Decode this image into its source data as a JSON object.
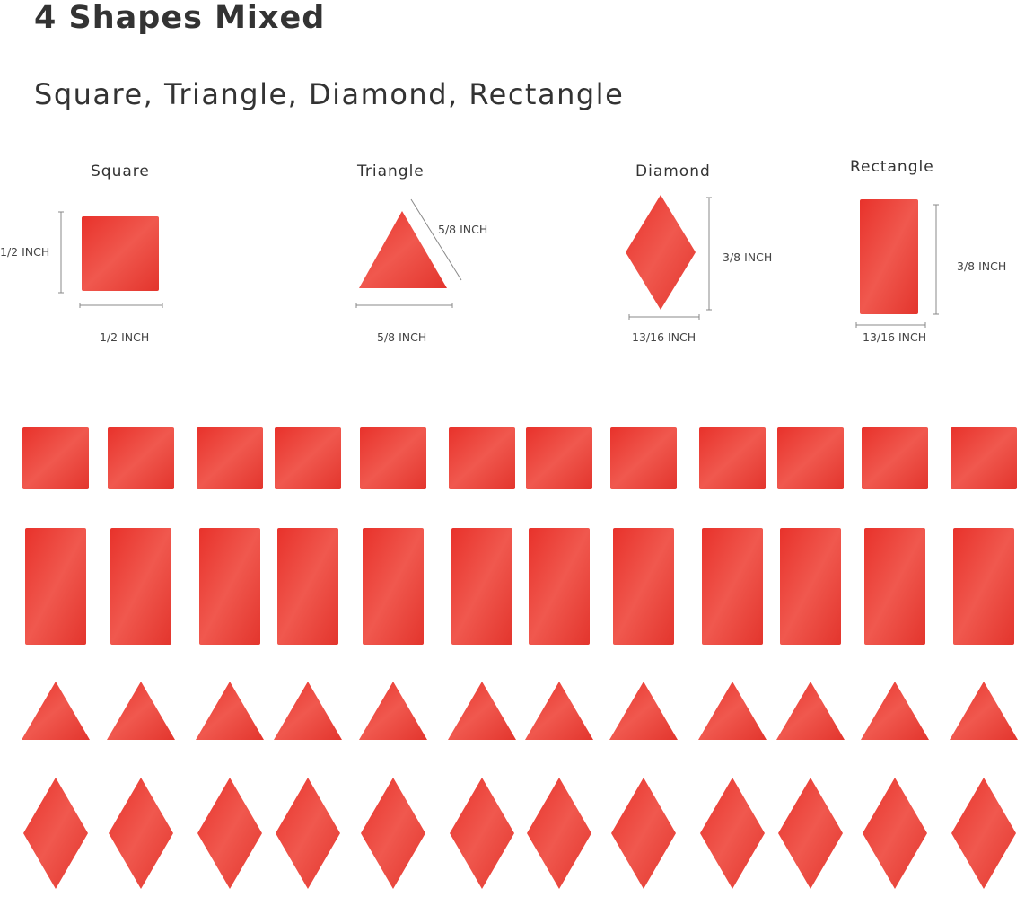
{
  "header": {
    "title": "4 Shapes Mixed",
    "subtitle": "Square, Triangle, Diamond, Rectangle"
  },
  "shapes": [
    {
      "name": "Square",
      "height": "1/2 INCH",
      "width": "1/2 INCH"
    },
    {
      "name": "Triangle",
      "side": "5/8 INCH",
      "width": "5/8 INCH"
    },
    {
      "name": "Diamond",
      "height": "3/8 INCH",
      "width": "13/16 INCH"
    },
    {
      "name": "Rectangle",
      "height": "3/8 INCH",
      "width": "13/16 INCH"
    }
  ],
  "colors": {
    "tile": "#e8362e",
    "tile_light": "#f2645a",
    "text": "#333333"
  }
}
